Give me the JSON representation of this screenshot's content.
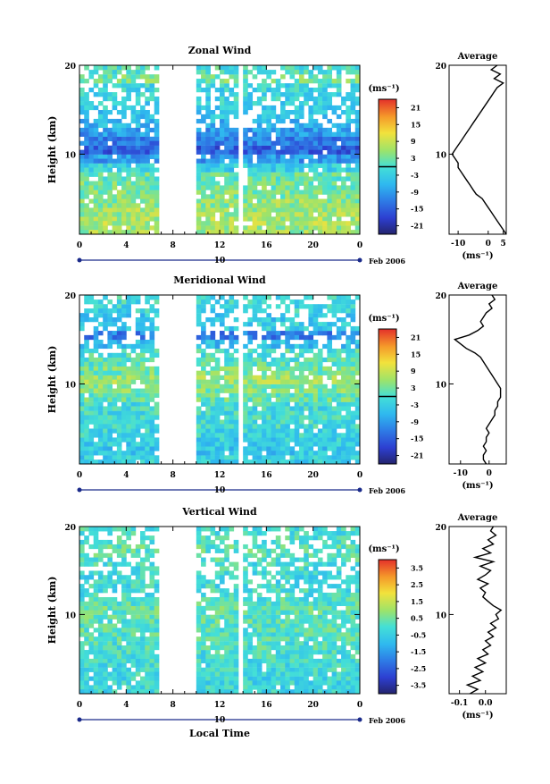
{
  "chart_data": [
    {
      "type": "heatmap",
      "title": "Zonal Wind",
      "ylabel": "Height (km)",
      "xlabel": "",
      "x_ticks": [
        "0",
        "4",
        "8",
        "12",
        "16",
        "20",
        "0"
      ],
      "y_ticks": [
        "20",
        "10"
      ],
      "date_marker": "10",
      "date_label": "Feb 2006",
      "colorbar": {
        "unit": "(ms⁻¹)",
        "ticks": [
          "21",
          "15",
          "9",
          "3",
          "-3",
          "-9",
          "-15",
          "-21"
        ],
        "range": [
          -24,
          24
        ],
        "zero_line": true
      },
      "data_gaps_hours": [
        [
          6.7,
          9.7
        ],
        [
          13.4,
          13.9
        ]
      ],
      "height_levels_km": [
        1,
        2,
        3,
        4,
        5,
        6,
        7,
        8,
        9,
        10,
        11,
        12,
        13,
        14,
        15,
        16,
        17,
        18,
        19
      ],
      "typical_values_ms": [
        6,
        7,
        6,
        5,
        4,
        3,
        2,
        -3,
        -9,
        -15,
        -12,
        -9,
        -6,
        -4,
        -3,
        -2,
        -2,
        3,
        0
      ],
      "average": {
        "title": "Average",
        "xlabel": "(ms⁻¹)",
        "x_ticks": [
          "-10",
          "0",
          "5"
        ],
        "xlim": [
          -13,
          6
        ],
        "y_ticks": [
          "20",
          "10"
        ],
        "profile": [
          [
            6,
            1
          ],
          [
            5,
            1.5
          ],
          [
            4,
            2
          ],
          [
            3,
            2.5
          ],
          [
            2,
            3
          ],
          [
            1,
            3.5
          ],
          [
            0,
            4
          ],
          [
            -1,
            4.5
          ],
          [
            -2,
            5
          ],
          [
            -4,
            5.5
          ],
          [
            -5,
            6
          ],
          [
            -6,
            6.5
          ],
          [
            -7,
            7
          ],
          [
            -8,
            7.5
          ],
          [
            -9,
            8
          ],
          [
            -10,
            8.5
          ],
          [
            -10,
            9
          ],
          [
            -11,
            9.5
          ],
          [
            -12,
            10
          ],
          [
            -11,
            10.5
          ],
          [
            -10,
            11
          ],
          [
            -9,
            11.5
          ],
          [
            -8,
            12
          ],
          [
            -7,
            12.5
          ],
          [
            -6,
            13
          ],
          [
            -5,
            13.5
          ],
          [
            -4,
            14
          ],
          [
            -3,
            14.5
          ],
          [
            -2,
            15
          ],
          [
            -1,
            15.5
          ],
          [
            0,
            16
          ],
          [
            1,
            16.5
          ],
          [
            2,
            17
          ],
          [
            3,
            17.5
          ],
          [
            5,
            18
          ],
          [
            2,
            18.5
          ],
          [
            4,
            19
          ],
          [
            1,
            19.5
          ],
          [
            3,
            20
          ]
        ]
      }
    },
    {
      "type": "heatmap",
      "title": "Meridional Wind",
      "ylabel": "Height (km)",
      "xlabel": "",
      "x_ticks": [
        "0",
        "4",
        "8",
        "12",
        "16",
        "20",
        "0"
      ],
      "y_ticks": [
        "20",
        "10"
      ],
      "date_marker": "10",
      "date_label": "Feb 2006",
      "colorbar": {
        "unit": "(ms⁻¹)",
        "ticks": [
          "21",
          "15",
          "9",
          "3",
          "-3",
          "-9",
          "-15",
          "-21"
        ],
        "range": [
          -24,
          24
        ],
        "zero_line": true
      },
      "data_gaps_hours": [
        [
          6.7,
          9.7
        ],
        [
          13.4,
          13.9
        ]
      ],
      "height_levels_km": [
        1,
        2,
        3,
        4,
        5,
        6,
        7,
        8,
        9,
        10,
        11,
        12,
        13,
        14,
        15,
        16,
        17,
        18,
        19
      ],
      "typical_values_ms": [
        -3,
        -4,
        -3,
        -2,
        -1,
        -1,
        -1,
        2,
        4,
        6,
        3,
        1,
        0,
        -5,
        -12,
        -3,
        -4,
        -2,
        -1
      ],
      "average": {
        "title": "Average",
        "xlabel": "(ms⁻¹)",
        "x_ticks": [
          "-10",
          "0"
        ],
        "xlim": [
          -14,
          6
        ],
        "y_ticks": [
          "20",
          "10"
        ],
        "profile": [
          [
            -1,
            1
          ],
          [
            -2,
            1.5
          ],
          [
            -2,
            2
          ],
          [
            -1,
            2.5
          ],
          [
            -2,
            3
          ],
          [
            -1,
            3.5
          ],
          [
            -1,
            4
          ],
          [
            0,
            4.5
          ],
          [
            -1,
            5
          ],
          [
            0,
            5.5
          ],
          [
            1,
            6
          ],
          [
            2,
            6.5
          ],
          [
            2,
            7
          ],
          [
            3,
            7.5
          ],
          [
            3,
            8
          ],
          [
            4,
            8.5
          ],
          [
            4,
            9
          ],
          [
            4,
            9.5
          ],
          [
            3,
            10
          ],
          [
            2,
            10.5
          ],
          [
            1,
            11
          ],
          [
            0,
            11.5
          ],
          [
            -1,
            12
          ],
          [
            -2,
            12.5
          ],
          [
            -3,
            13
          ],
          [
            -5,
            13.5
          ],
          [
            -8,
            14
          ],
          [
            -10,
            14.5
          ],
          [
            -12,
            15
          ],
          [
            -7,
            15.5
          ],
          [
            -4,
            16
          ],
          [
            -2,
            16.5
          ],
          [
            -3,
            17
          ],
          [
            -2,
            17.5
          ],
          [
            -1,
            18
          ],
          [
            1,
            18.5
          ],
          [
            0,
            19
          ],
          [
            2,
            19.5
          ],
          [
            1,
            20
          ]
        ]
      }
    },
    {
      "type": "heatmap",
      "title": "Vertical Wind",
      "ylabel": "Height (km)",
      "xlabel": "Local Time",
      "x_ticks": [
        "0",
        "4",
        "8",
        "12",
        "16",
        "20",
        "0"
      ],
      "y_ticks": [
        "20",
        "10"
      ],
      "date_marker": "10",
      "date_label": "Feb 2006",
      "colorbar": {
        "unit": "(ms⁻¹)",
        "ticks": [
          "3.5",
          "2.5",
          "1.5",
          "0.5",
          "-0.5",
          "-1.5",
          "-2.5",
          "-3.5"
        ],
        "range": [
          -4,
          4
        ],
        "zero_line": false
      },
      "data_gaps_hours": [
        [
          6.7,
          9.7
        ],
        [
          13.4,
          13.9
        ]
      ],
      "height_levels_km": [
        1,
        2,
        3,
        4,
        5,
        6,
        7,
        8,
        9,
        10,
        11,
        12,
        13,
        14,
        15,
        16,
        17,
        18,
        19
      ],
      "typical_values_ms": [
        -0.3,
        -0.3,
        -0.2,
        -0.2,
        -0.1,
        0,
        0.1,
        0.2,
        0.2,
        0.3,
        0.1,
        -0.1,
        -0.2,
        -0.3,
        -0.1,
        0.1,
        0.2,
        0,
        -0.1
      ],
      "average": {
        "title": "Average",
        "xlabel": "(ms⁻¹)",
        "x_ticks": [
          "-0.1",
          "0.0"
        ],
        "xlim": [
          -0.14,
          0.08
        ],
        "y_ticks": [
          "20",
          "10"
        ],
        "profile": [
          [
            -0.06,
            1
          ],
          [
            -0.03,
            1.5
          ],
          [
            -0.07,
            2
          ],
          [
            -0.02,
            2.5
          ],
          [
            -0.05,
            3
          ],
          [
            -0.01,
            3.5
          ],
          [
            -0.04,
            4
          ],
          [
            0.0,
            4.5
          ],
          [
            -0.03,
            5
          ],
          [
            0.01,
            5.5
          ],
          [
            -0.01,
            6
          ],
          [
            0.02,
            6.5
          ],
          [
            0.0,
            7
          ],
          [
            0.03,
            7.5
          ],
          [
            0.01,
            8
          ],
          [
            0.04,
            8.5
          ],
          [
            0.02,
            9
          ],
          [
            0.05,
            9.5
          ],
          [
            0.04,
            10
          ],
          [
            0.06,
            10.5
          ],
          [
            0.03,
            11
          ],
          [
            0.01,
            11.5
          ],
          [
            -0.01,
            12
          ],
          [
            0.0,
            12.5
          ],
          [
            -0.02,
            13
          ],
          [
            0.01,
            13.5
          ],
          [
            -0.03,
            14
          ],
          [
            0.0,
            14.5
          ],
          [
            0.02,
            15
          ],
          [
            -0.02,
            15.5
          ],
          [
            0.03,
            16
          ],
          [
            -0.04,
            16.5
          ],
          [
            0.02,
            17
          ],
          [
            -0.01,
            17.5
          ],
          [
            0.03,
            18
          ],
          [
            0.01,
            18.5
          ],
          [
            0.04,
            19
          ],
          [
            0.02,
            19.5
          ],
          [
            0.03,
            20
          ]
        ]
      }
    }
  ]
}
